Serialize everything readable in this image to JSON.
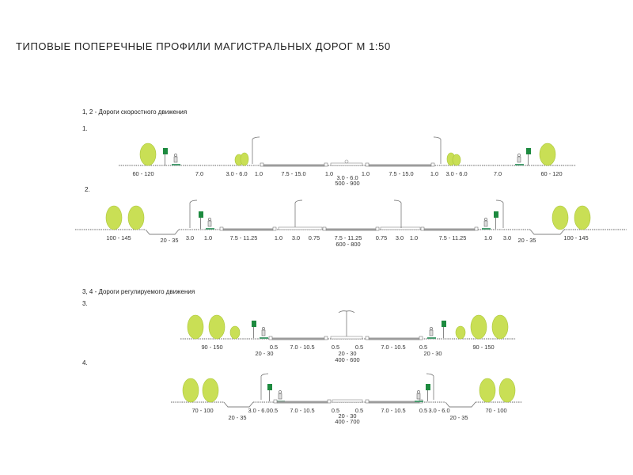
{
  "title": "ТИПОВЫЕ ПОПЕРЕЧНЫЕ ПРОФИЛИ МАГИСТРАЛЬНЫХ ДОРОГ М 1:50",
  "colors": {
    "tree": "#c9df55",
    "tree_edge": "#aac63a",
    "sign": "#1d8a3f",
    "lawn": "#4b9e72",
    "road_surface": "#9c9c9c",
    "ground_line": "#808080"
  },
  "sections": [
    {
      "title": "1, 2  - Дороги скоростного движения",
      "profiles": [
        {
          "number": "1.",
          "labels": [
            "60 - 120",
            "7.0",
            "3.0 - 6.0",
            "1.0",
            "7.5 - 15.0",
            "1.0",
            "3.0 - 6.0",
            "1.0",
            "7.5 - 15.0",
            "1.0",
            "3.0 - 6.0",
            "7.0",
            "60 - 120",
            "500 - 900"
          ]
        },
        {
          "number": "2.",
          "labels": [
            "100 - 145",
            "20 - 35",
            "3.0",
            "1.0",
            "7.5 - 11.25",
            "1.0",
            "3.0",
            "0.75",
            "7.5 - 11.25",
            "0.75",
            "3.0",
            "1.0",
            "7.5 - 11.25",
            "1.0",
            "3.0",
            "20 - 35",
            "100 - 145",
            "600 - 800"
          ]
        }
      ]
    },
    {
      "title": "3, 4  - Дороги регулируемого движения",
      "profiles": [
        {
          "number": "3.",
          "labels": [
            "90 - 150",
            "20 - 30",
            "0.5",
            "7.0 - 10.5",
            "0.5",
            "0.5",
            "7.0 - 10.5",
            "0.5",
            "90 - 150",
            "20 - 30",
            "20 - 30",
            "400 - 600"
          ]
        },
        {
          "number": "4.",
          "labels": [
            "70 - 100",
            "20 - 35",
            "3.0 - 6.0",
            "0.5",
            "7.0 - 10.5",
            "0.5",
            "0.5",
            "7.0 - 10.5",
            "0.5",
            "3.0 - 6.0",
            "20 - 35",
            "70 - 100",
            "20 - 30",
            "400 - 700"
          ]
        }
      ]
    }
  ]
}
